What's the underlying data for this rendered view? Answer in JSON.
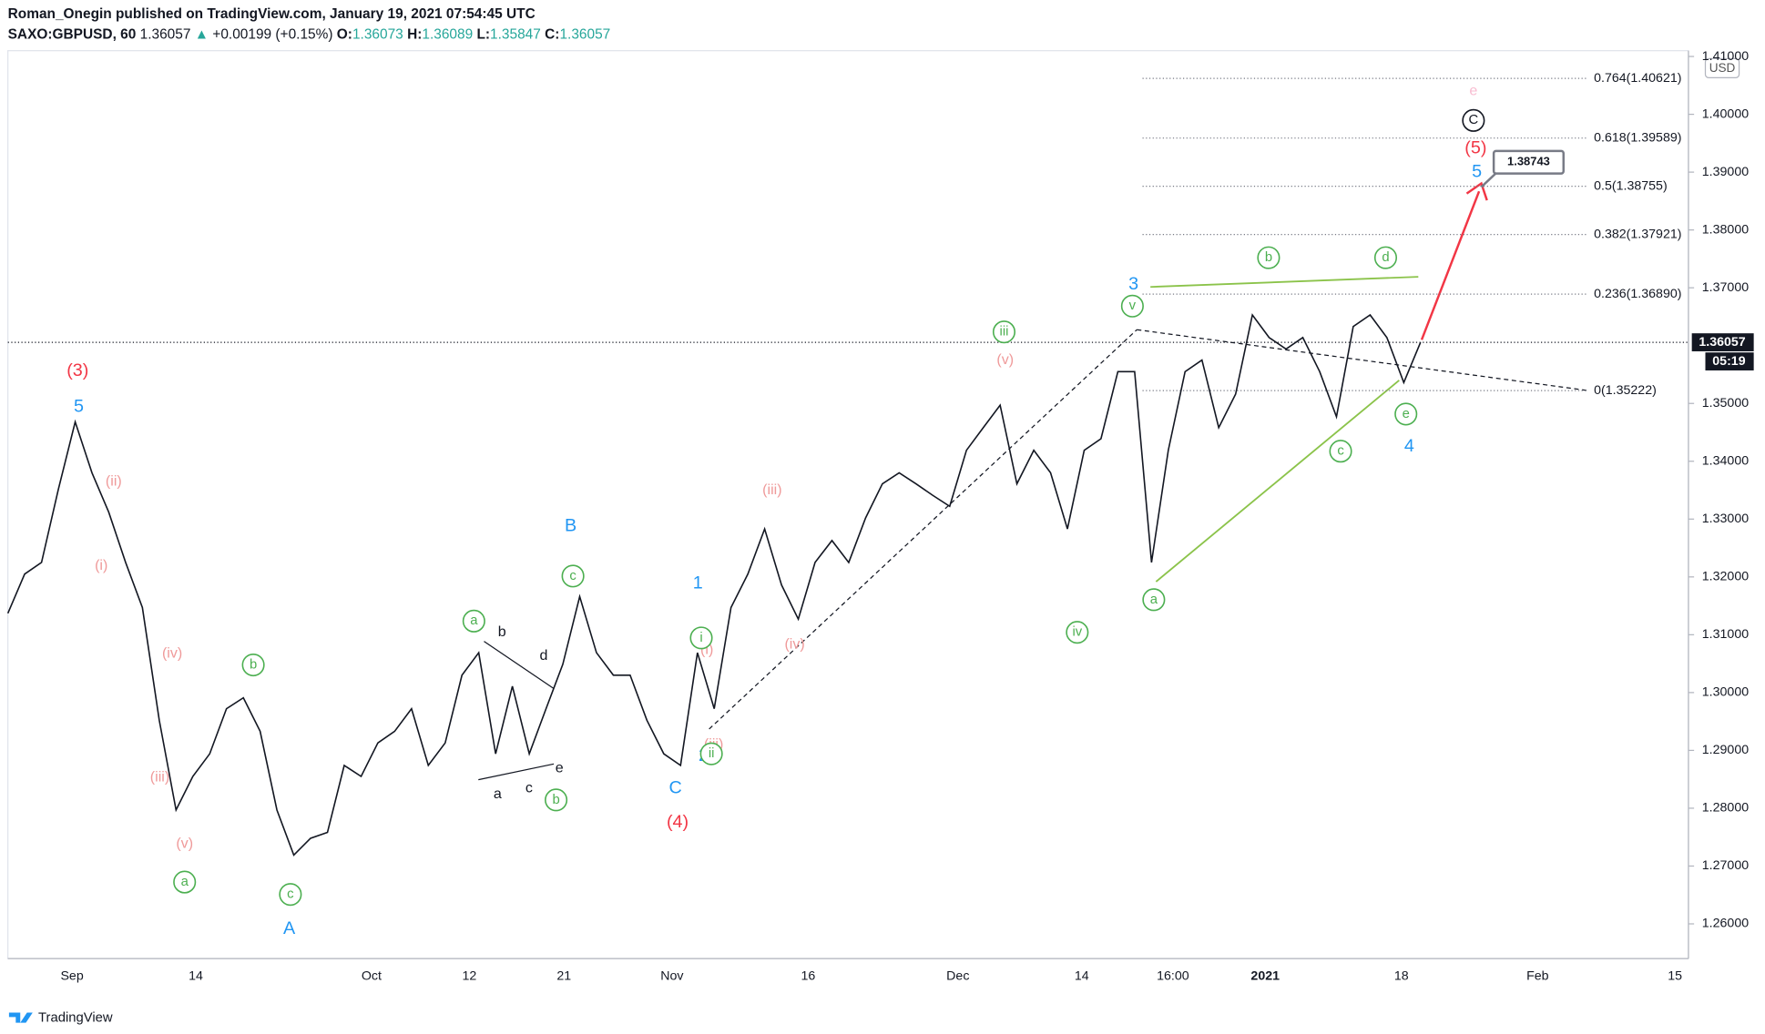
{
  "header": {
    "author_line": "Roman_Onegin published on TradingView.com, January 19, 2021 07:54:45 UTC",
    "symbol": "SAXO:GBPUSD, 60",
    "last": 1.36057,
    "change_arrow": "▲",
    "change": "+0.00199 (+0.15%)",
    "o_label": "O:",
    "o": 1.36073,
    "h_label": "H:",
    "h": 1.36089,
    "l_label": "L:",
    "l": 1.35847,
    "c_label": "C:",
    "c": 1.36057
  },
  "chart_data": {
    "type": "line",
    "currency": "USD",
    "ylim": [
      1.254,
      1.411
    ],
    "yticks": [
      {
        "value": 1.26,
        "label": "1.26000"
      },
      {
        "value": 1.27,
        "label": "1.27000"
      },
      {
        "value": 1.28,
        "label": "1.28000"
      },
      {
        "value": 1.29,
        "label": "1.29000"
      },
      {
        "value": 1.3,
        "label": "1.30000"
      },
      {
        "value": 1.31,
        "label": "1.31000"
      },
      {
        "value": 1.32,
        "label": "1.32000"
      },
      {
        "value": 1.33,
        "label": "1.33000"
      },
      {
        "value": 1.34,
        "label": "1.34000"
      },
      {
        "value": 1.35,
        "label": "1.35000"
      },
      {
        "value": 1.37,
        "label": "1.37000"
      },
      {
        "value": 1.38,
        "label": "1.38000"
      },
      {
        "value": 1.39,
        "label": "1.39000"
      },
      {
        "value": 1.4,
        "label": "1.40000"
      },
      {
        "value": 1.41,
        "label": "1.41000"
      }
    ],
    "xtick_labels": [
      "Sep",
      "14",
      "Oct",
      "12",
      "21",
      "Nov",
      "16",
      "Dec",
      "14",
      "16:00",
      "2021",
      "18",
      "Feb",
      "15"
    ],
    "series": [
      {
        "name": "GBPUSD",
        "color": "#131722",
        "values": [
          1.3137,
          1.3205,
          1.3225,
          1.3351,
          1.3468,
          1.338,
          1.3312,
          1.3225,
          1.3147,
          1.2952,
          1.2797,
          1.2855,
          1.2894,
          1.2972,
          1.2991,
          1.2933,
          1.2797,
          1.2719,
          1.2748,
          1.2758,
          1.2874,
          1.2855,
          1.2913,
          1.2933,
          1.2972,
          1.2874,
          1.2913,
          1.303,
          1.3069,
          1.2894,
          1.3011,
          1.2894,
          1.2972,
          1.3049,
          1.3166,
          1.3069,
          1.303,
          1.303,
          1.2952,
          1.2894,
          1.2874,
          1.3069,
          1.2972,
          1.3147,
          1.3205,
          1.3283,
          1.3186,
          1.3127,
          1.3225,
          1.3263,
          1.3225,
          1.3302,
          1.3361,
          1.338,
          1.3361,
          1.3341,
          1.3322,
          1.3419,
          1.3458,
          1.3497,
          1.3361,
          1.3419,
          1.338,
          1.3283,
          1.3419,
          1.3439,
          1.3555,
          1.3555,
          1.3225,
          1.3419,
          1.3555,
          1.3575,
          1.3458,
          1.3516,
          1.3653,
          1.3614,
          1.3594,
          1.3614,
          1.3555,
          1.3477,
          1.3633,
          1.3653,
          1.3614,
          1.3536,
          1.36057
        ]
      }
    ],
    "last_price": {
      "value": 1.36057,
      "label": "1.36057",
      "timer": "05:19"
    },
    "fib_levels": [
      {
        "value": 1.40621,
        "label": "0.764(1.40621)"
      },
      {
        "value": 1.39589,
        "label": "0.618(1.39589)"
      },
      {
        "value": 1.38755,
        "label": "0.5(1.38755)"
      },
      {
        "value": 1.37921,
        "label": "0.382(1.37921)"
      },
      {
        "value": 1.3689,
        "label": "0.236(1.36890)"
      },
      {
        "value": 1.35222,
        "label": "0(1.35222)"
      }
    ],
    "target": {
      "value": 1.38743,
      "label": "1.38743"
    },
    "annotations": [
      {
        "text": "(3)",
        "color": "#f23645"
      },
      {
        "text": "(4)",
        "color": "#f23645"
      },
      {
        "text": "(5)",
        "color": "#f23645"
      },
      {
        "text": "5",
        "color": "#2196f3"
      },
      {
        "text": "A",
        "color": "#2196f3"
      },
      {
        "text": "B",
        "color": "#2196f3"
      },
      {
        "text": "C",
        "color": "#2196f3"
      },
      {
        "text": "1",
        "color": "#2196f3"
      },
      {
        "text": "2",
        "color": "#2196f3"
      },
      {
        "text": "3",
        "color": "#2196f3"
      },
      {
        "text": "4",
        "color": "#2196f3"
      },
      {
        "text": "5",
        "color": "#2196f3"
      },
      {
        "text": "(ii)",
        "color": "#ef9a9a"
      },
      {
        "text": "(i)",
        "color": "#ef9a9a"
      },
      {
        "text": "(iv)",
        "color": "#ef9a9a"
      },
      {
        "text": "(iii)",
        "color": "#ef9a9a"
      },
      {
        "text": "(v)",
        "color": "#ef9a9a"
      },
      {
        "text": "(iii)",
        "color": "#ef9a9a"
      },
      {
        "text": "(iv)",
        "color": "#ef9a9a"
      },
      {
        "text": "(v)",
        "color": "#ef9a9a"
      },
      {
        "text": "(i)",
        "color": "#ef9a9a"
      },
      {
        "text": "(iii)",
        "color": "#ef9a9a"
      },
      {
        "text": "e",
        "color": "#f8bbd0"
      },
      {
        "text": "a",
        "color": "#4caf50"
      },
      {
        "text": "b",
        "color": "#4caf50"
      },
      {
        "text": "c",
        "color": "#4caf50"
      },
      {
        "text": "a",
        "color": "#4caf50"
      },
      {
        "text": "c",
        "color": "#4caf50"
      },
      {
        "text": "b",
        "color": "#4caf50"
      },
      {
        "text": "i",
        "color": "#4caf50"
      },
      {
        "text": "ii",
        "color": "#4caf50"
      },
      {
        "text": "iii",
        "color": "#4caf50"
      },
      {
        "text": "iv",
        "color": "#4caf50"
      },
      {
        "text": "v",
        "color": "#4caf50"
      },
      {
        "text": "a",
        "color": "#4caf50"
      },
      {
        "text": "b",
        "color": "#4caf50"
      },
      {
        "text": "c",
        "color": "#4caf50"
      },
      {
        "text": "d",
        "color": "#4caf50"
      },
      {
        "text": "e",
        "color": "#4caf50"
      },
      {
        "text": "b",
        "color": "#131722"
      },
      {
        "text": "d",
        "color": "#131722"
      },
      {
        "text": "a",
        "color": "#131722"
      },
      {
        "text": "c",
        "color": "#131722"
      },
      {
        "text": "e",
        "color": "#131722"
      },
      {
        "text": "C",
        "color": "#131722"
      }
    ]
  },
  "footer": {
    "brand": "TradingView"
  }
}
